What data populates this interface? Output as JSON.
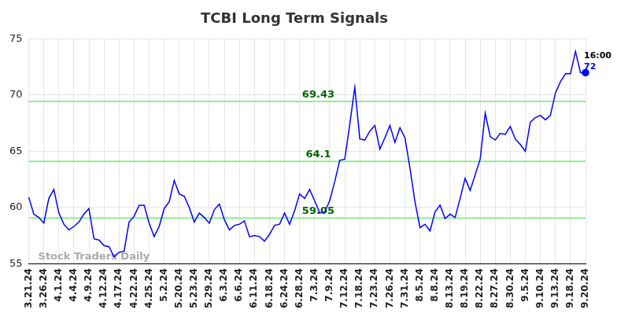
{
  "chart_data": {
    "type": "line",
    "title": "TCBI Long Term Signals",
    "categories": [
      "3.21.24",
      null,
      null,
      "3.26.24",
      null,
      null,
      "4.1.24",
      null,
      null,
      "4.4.24",
      null,
      null,
      "4.9.24",
      null,
      null,
      "4.12.24",
      null,
      null,
      "4.17.24",
      null,
      null,
      "4.22.24",
      null,
      null,
      "4.25.24",
      null,
      null,
      "5.2.24",
      null,
      null,
      "5.20.24",
      null,
      null,
      "5.23.24",
      null,
      null,
      "5.29.24",
      null,
      null,
      "6.3.24",
      null,
      null,
      "6.6.24",
      null,
      null,
      "6.11.24",
      null,
      null,
      "6.18.24",
      null,
      null,
      "6.24.24",
      null,
      null,
      "6.28.24",
      null,
      null,
      "7.3.24",
      null,
      null,
      "7.9.24",
      null,
      null,
      "7.12.24",
      null,
      null,
      "7.18.24",
      null,
      null,
      "7.23.24",
      null,
      null,
      "7.26.24",
      null,
      null,
      "7.31.24",
      null,
      null,
      "8.5.24",
      null,
      null,
      "8.8.24",
      null,
      null,
      "8.13.24",
      null,
      null,
      "8.19.24",
      null,
      null,
      "8.22.24",
      null,
      null,
      "8.27.24",
      null,
      null,
      "8.30.24",
      null,
      null,
      "9.5.24",
      null,
      null,
      "9.10.24",
      null,
      null,
      "9.13.24",
      null,
      null,
      "9.18.24",
      null,
      null,
      "9.20.24"
    ],
    "values": [
      60.9,
      59.4,
      59.1,
      58.6,
      60.8,
      61.6,
      59.5,
      58.5,
      58.0,
      58.3,
      58.7,
      59.4,
      59.9,
      57.2,
      57.1,
      56.6,
      56.5,
      55.6,
      56.0,
      56.1,
      58.7,
      59.2,
      60.2,
      60.2,
      58.6,
      57.4,
      58.3,
      59.9,
      60.5,
      62.4,
      61.2,
      61.0,
      60.0,
      58.7,
      59.5,
      59.1,
      58.6,
      59.8,
      60.3,
      58.9,
      58.0,
      58.4,
      58.5,
      58.8,
      57.4,
      57.5,
      57.4,
      57.0,
      57.6,
      58.4,
      58.5,
      59.5,
      58.5,
      59.7,
      61.2,
      60.8,
      61.6,
      60.6,
      59.5,
      59.6,
      60.6,
      62.3,
      64.2,
      64.3,
      67.4,
      70.7,
      66.1,
      66.0,
      66.8,
      67.3,
      65.2,
      66.2,
      67.3,
      65.8,
      67.1,
      66.2,
      63.5,
      60.5,
      58.2,
      58.5,
      57.9,
      59.6,
      60.2,
      59.0,
      59.4,
      59.1,
      60.8,
      62.6,
      61.5,
      62.9,
      64.3,
      68.4,
      66.3,
      66.0,
      66.6,
      66.5,
      67.2,
      66.1,
      65.6,
      65.0,
      67.6,
      68.0,
      68.2,
      67.8,
      68.2,
      70.2,
      71.2,
      71.9,
      71.9,
      73.9,
      72.0,
      72.0
    ],
    "color": "#0000ff",
    "ylim": [
      55,
      75
    ],
    "yticks": [
      55,
      60,
      65,
      70,
      75
    ],
    "grid": true,
    "reference_lines": {
      "values": [
        69.43,
        64.1,
        59.05
      ],
      "color": "#90ee90"
    },
    "end_annotation": {
      "time": "16:00",
      "value": 72
    },
    "watermark": "Stock Traders Daily"
  }
}
